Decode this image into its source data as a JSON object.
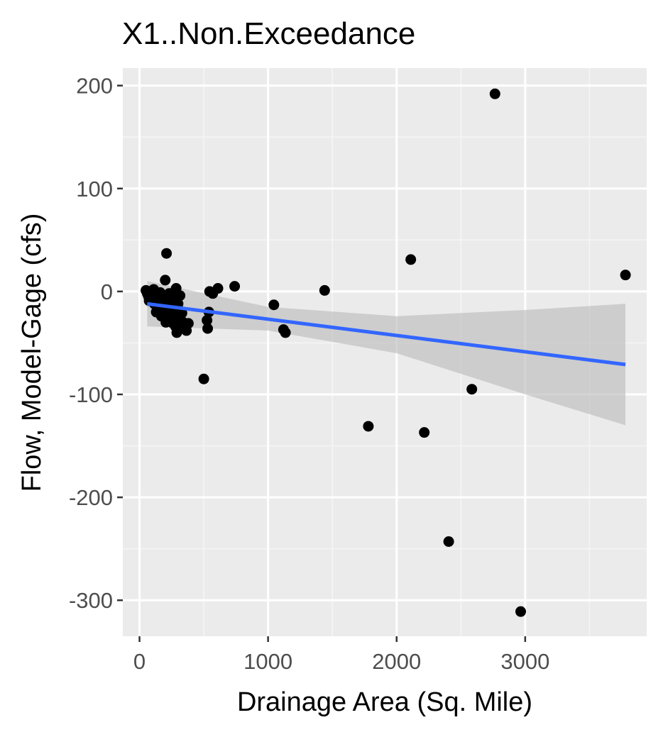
{
  "chart_data": {
    "type": "scatter",
    "title": "X1..Non.Exceedance",
    "xlabel": "Drainage Area (Sq. Mile)",
    "ylabel": "Flow, Model-Gage (cfs)",
    "xlim": [
      -130,
      3945
    ],
    "ylim": [
      -335,
      217
    ],
    "x_ticks": [
      0,
      1000,
      2000,
      3000
    ],
    "y_ticks": [
      200,
      100,
      0,
      -100,
      -200,
      -300
    ],
    "grid": true,
    "legend": "none",
    "colors": {
      "panel": "#ebebeb",
      "grid_major": "#ffffff",
      "grid_minor": "#f5f5f5",
      "point": "#000000",
      "fit_line": "#3366ff",
      "confidence_band": "#bdbdbd",
      "tick_mark": "#333333"
    },
    "points": [
      {
        "x": 50,
        "y": 1
      },
      {
        "x": 60,
        "y": -2
      },
      {
        "x": 70,
        "y": -5
      },
      {
        "x": 75,
        "y": -9
      },
      {
        "x": 85,
        "y": 0
      },
      {
        "x": 95,
        "y": -3
      },
      {
        "x": 100,
        "y": -7
      },
      {
        "x": 110,
        "y": 2
      },
      {
        "x": 115,
        "y": -12
      },
      {
        "x": 130,
        "y": -20
      },
      {
        "x": 140,
        "y": -4
      },
      {
        "x": 150,
        "y": -14
      },
      {
        "x": 160,
        "y": -1
      },
      {
        "x": 170,
        "y": -24
      },
      {
        "x": 180,
        "y": -10
      },
      {
        "x": 190,
        "y": -17
      },
      {
        "x": 200,
        "y": 11
      },
      {
        "x": 205,
        "y": -30
      },
      {
        "x": 210,
        "y": 37
      },
      {
        "x": 215,
        "y": -6
      },
      {
        "x": 225,
        "y": -22
      },
      {
        "x": 230,
        "y": -2
      },
      {
        "x": 240,
        "y": -13
      },
      {
        "x": 245,
        "y": -27
      },
      {
        "x": 255,
        "y": -8
      },
      {
        "x": 260,
        "y": -31
      },
      {
        "x": 265,
        "y": -1
      },
      {
        "x": 275,
        "y": -18
      },
      {
        "x": 280,
        "y": -34
      },
      {
        "x": 285,
        "y": 3
      },
      {
        "x": 290,
        "y": -40
      },
      {
        "x": 300,
        "y": -12
      },
      {
        "x": 305,
        "y": -25
      },
      {
        "x": 315,
        "y": -4
      },
      {
        "x": 320,
        "y": -36
      },
      {
        "x": 330,
        "y": -21
      },
      {
        "x": 340,
        "y": -30
      },
      {
        "x": 350,
        "y": -33
      },
      {
        "x": 365,
        "y": -38
      },
      {
        "x": 380,
        "y": -31
      },
      {
        "x": 500,
        "y": -85
      },
      {
        "x": 525,
        "y": -28
      },
      {
        "x": 530,
        "y": -36
      },
      {
        "x": 540,
        "y": -20
      },
      {
        "x": 545,
        "y": 0
      },
      {
        "x": 570,
        "y": -2
      },
      {
        "x": 610,
        "y": 3
      },
      {
        "x": 740,
        "y": 5
      },
      {
        "x": 1045,
        "y": -13
      },
      {
        "x": 1120,
        "y": -37
      },
      {
        "x": 1135,
        "y": -40
      },
      {
        "x": 1440,
        "y": 1
      },
      {
        "x": 1780,
        "y": -131
      },
      {
        "x": 2110,
        "y": 31
      },
      {
        "x": 2215,
        "y": -137
      },
      {
        "x": 2405,
        "y": -243
      },
      {
        "x": 2585,
        "y": -95
      },
      {
        "x": 2765,
        "y": 192
      },
      {
        "x": 2965,
        "y": -311
      },
      {
        "x": 3780,
        "y": 16
      }
    ],
    "fit": {
      "method": "linear",
      "x": [
        60,
        1000,
        2000,
        3000,
        3780
      ],
      "y": [
        -12,
        -27,
        -42,
        -58,
        -71
      ],
      "lower": [
        -34,
        -38,
        -60,
        -100,
        -130
      ],
      "upper": [
        10,
        -15,
        -24,
        -18,
        -12
      ]
    }
  }
}
